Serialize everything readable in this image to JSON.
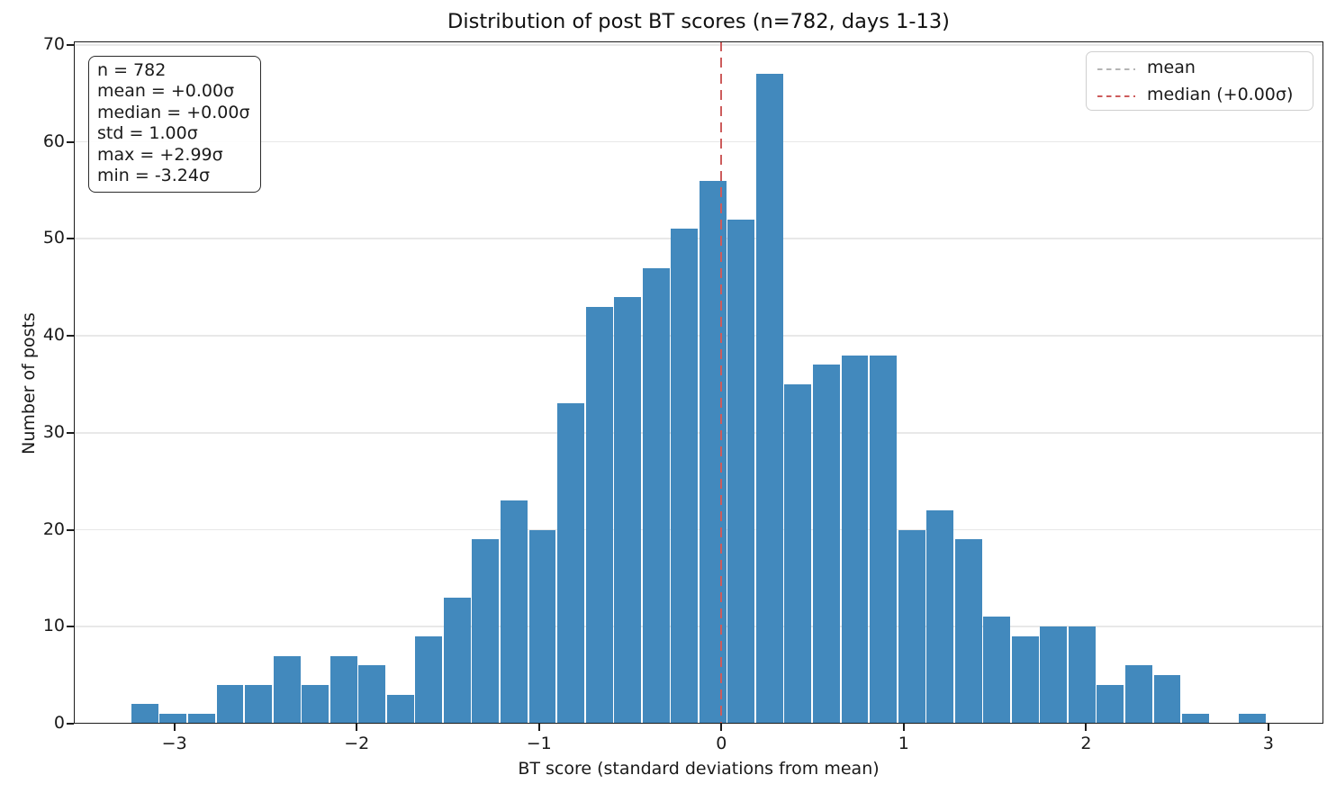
{
  "title": "Distribution of post BT scores (n=782, days 1-13)",
  "stats_box": {
    "lines": [
      "n = 782",
      "mean = +0.00σ",
      "median = +0.00σ",
      "std = 1.00σ",
      "max = +2.99σ",
      "min = -3.24σ"
    ]
  },
  "legend": {
    "items": [
      {
        "label": "mean",
        "color": "#b5b5b5"
      },
      {
        "label": "median (+0.00σ)",
        "color": "#cd5c5c"
      }
    ]
  },
  "chart_data": {
    "type": "bar",
    "subtype": "histogram",
    "title": "Distribution of post BT scores (n=782, days 1-13)",
    "xlabel": "BT score (standard deviations from mean)",
    "ylabel": "Number of posts",
    "n": 782,
    "bin_start": -3.24,
    "bin_end": 2.99,
    "bin_count": 40,
    "counts": [
      2,
      1,
      1,
      4,
      4,
      7,
      4,
      7,
      6,
      3,
      9,
      13,
      19,
      23,
      20,
      33,
      43,
      44,
      47,
      51,
      56,
      52,
      67,
      35,
      37,
      38,
      38,
      20,
      22,
      19,
      11,
      9,
      10,
      10,
      4,
      6,
      5,
      1,
      0,
      1
    ],
    "x_tick_values": [
      -3,
      -2,
      -1,
      0,
      1,
      2,
      3
    ],
    "x_tick_labels": [
      "−3",
      "−2",
      "−1",
      "0",
      "1",
      "2",
      "3"
    ],
    "y_tick_values": [
      0,
      10,
      20,
      30,
      40,
      50,
      60,
      70
    ],
    "y_tick_labels": [
      "0",
      "10",
      "20",
      "30",
      "40",
      "50",
      "60",
      "70"
    ],
    "xlim": [
      -3.5515,
      3.3015
    ],
    "ylim": [
      0,
      70.35
    ],
    "grid": true,
    "legend_position": "upper right",
    "bar_color": "#4289bd",
    "bar_edge_color": "#ffffff",
    "grid_color": "#e8e8e8",
    "mean_line": {
      "x": 0,
      "color": "#b5b5b5",
      "style": "dashed"
    },
    "median_line": {
      "x": 0,
      "color": "#cd5c5c",
      "style": "dashed"
    }
  }
}
